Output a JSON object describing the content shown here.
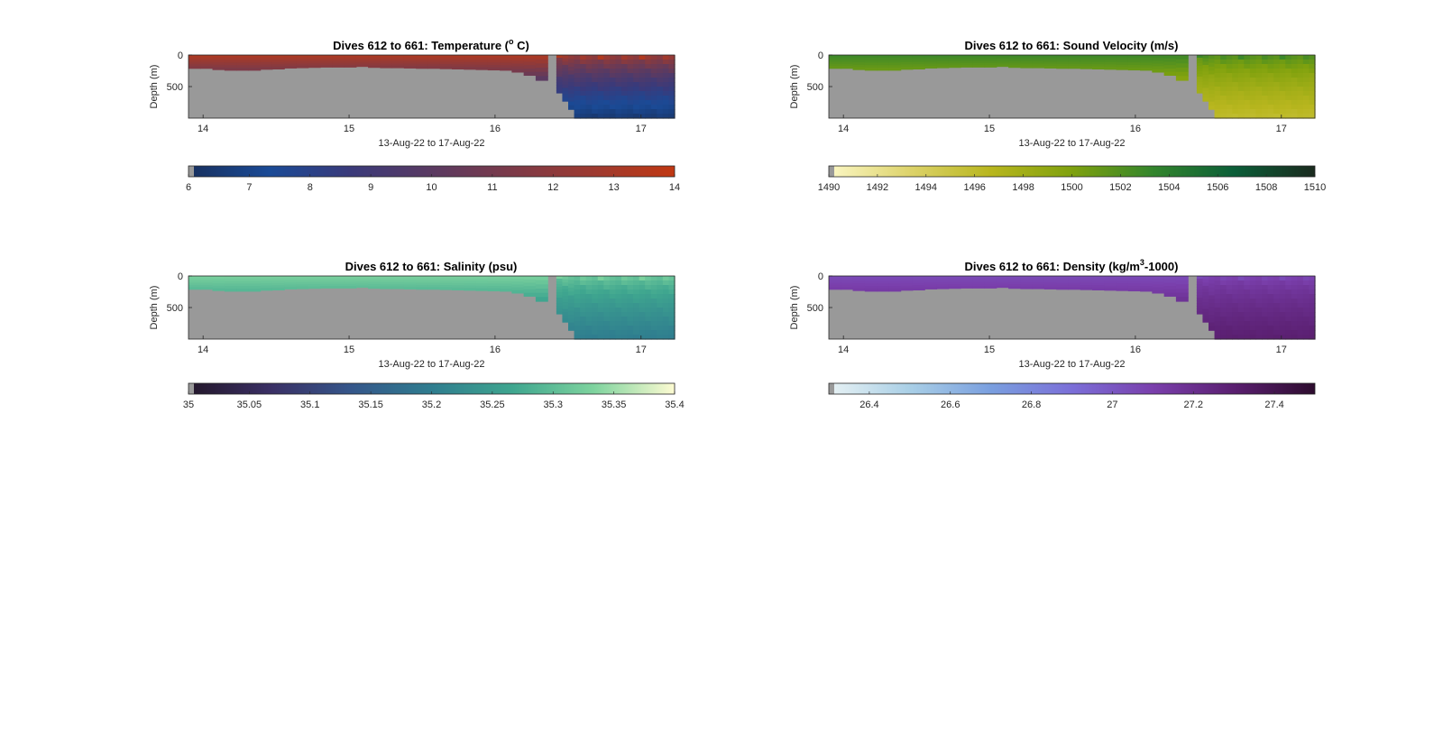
{
  "chart_data": [
    {
      "type": "heatmap",
      "title_main": "Dives 612 to 661: Temperature (",
      "title_sup": "o",
      "title_tail": " C)",
      "xlabel": "13-Aug-22 to 17-Aug-22",
      "ylabel": "Depth (m)",
      "x_ticks": [
        "14",
        "15",
        "16",
        "17"
      ],
      "x_tick_values": [
        14,
        15,
        16,
        17
      ],
      "xlim": [
        13.9,
        17.23
      ],
      "y_ticks": [
        "0",
        "500"
      ],
      "y_tick_values": [
        0,
        500
      ],
      "ylim": [
        1000,
        0
      ],
      "missing_color": "#999999",
      "colormap": [
        "#18305e",
        "#1a4a96",
        "#3a3a7a",
        "#5a3a62",
        "#7c3a48",
        "#9d3a30",
        "#c03812"
      ],
      "colorbar": {
        "ticks": [
          "6",
          "7",
          "8",
          "9",
          "10",
          "11",
          "12",
          "13",
          "14"
        ],
        "values": [
          6,
          7,
          8,
          9,
          10,
          11,
          12,
          13,
          14
        ],
        "range": [
          6,
          14
        ]
      },
      "data_floor_m": [
        210,
        210,
        230,
        240,
        240,
        240,
        225,
        220,
        205,
        200,
        195,
        190,
        190,
        190,
        180,
        195,
        200,
        200,
        205,
        210,
        210,
        215,
        220,
        225,
        230,
        235,
        240,
        270,
        320,
        400
      ],
      "deep_mixing_depth_m": 900,
      "surface_value": 13.4,
      "deep_value": 6.5,
      "gap_start": 16.36,
      "gap_end": 16.42,
      "deep_start": 16.42
    },
    {
      "type": "heatmap",
      "title_main": "Dives 612 to 661: Sound Velocity (m/s)",
      "title_sup": "",
      "title_tail": "",
      "xlabel": "13-Aug-22 to 17-Aug-22",
      "ylabel": "Depth (m)",
      "x_ticks": [
        "14",
        "15",
        "16",
        "17"
      ],
      "x_tick_values": [
        14,
        15,
        16,
        17
      ],
      "xlim": [
        13.9,
        17.23
      ],
      "y_ticks": [
        "0",
        "500"
      ],
      "y_tick_values": [
        0,
        500
      ],
      "ylim": [
        1000,
        0
      ],
      "missing_color": "#999999",
      "colormap": [
        "#fbf7c5",
        "#ddd36b",
        "#b8b61e",
        "#7fa10e",
        "#33852c",
        "#0b5e38",
        "#1a2a1e"
      ],
      "colorbar": {
        "ticks": [
          "1490",
          "1492",
          "1494",
          "1496",
          "1498",
          "1500",
          "1502",
          "1504",
          "1506",
          "1508",
          "1510"
        ],
        "values": [
          1490,
          1492,
          1494,
          1496,
          1498,
          1500,
          1502,
          1504,
          1506,
          1508,
          1510
        ],
        "range": [
          1490,
          1510
        ]
      },
      "data_floor_m": [
        210,
        210,
        230,
        240,
        240,
        240,
        225,
        220,
        205,
        200,
        195,
        190,
        190,
        190,
        180,
        195,
        200,
        200,
        205,
        210,
        210,
        215,
        220,
        225,
        230,
        235,
        240,
        270,
        320,
        400
      ],
      "deep_mixing_depth_m": 900,
      "surface_value": 1503,
      "deep_value": 1496,
      "gap_start": 16.36,
      "gap_end": 16.42,
      "deep_start": 16.42
    },
    {
      "type": "heatmap",
      "title_main": "Dives 612 to 661: Salinity (psu)",
      "title_sup": "",
      "title_tail": "",
      "xlabel": "13-Aug-22 to 17-Aug-22",
      "ylabel": "Depth (m)",
      "x_ticks": [
        "14",
        "15",
        "16",
        "17"
      ],
      "x_tick_values": [
        14,
        15,
        16,
        17
      ],
      "xlim": [
        13.9,
        17.23
      ],
      "y_ticks": [
        "0",
        "500"
      ],
      "y_tick_values": [
        0,
        500
      ],
      "ylim": [
        1000,
        0
      ],
      "missing_color": "#999999",
      "colormap": [
        "#23172a",
        "#3a2f64",
        "#35568a",
        "#2f7d8f",
        "#3fa68f",
        "#7ed39e",
        "#fdfbd2"
      ],
      "colorbar": {
        "ticks": [
          "35",
          "35.05",
          "35.1",
          "35.15",
          "35.2",
          "35.25",
          "35.3",
          "35.35",
          "35.4"
        ],
        "values": [
          35,
          35.05,
          35.1,
          35.15,
          35.2,
          35.25,
          35.3,
          35.35,
          35.4
        ],
        "range": [
          35,
          35.4
        ]
      },
      "data_floor_m": [
        210,
        210,
        230,
        240,
        240,
        240,
        225,
        220,
        205,
        200,
        195,
        190,
        190,
        190,
        180,
        195,
        200,
        200,
        205,
        210,
        210,
        215,
        220,
        225,
        230,
        235,
        240,
        270,
        320,
        400
      ],
      "deep_mixing_depth_m": 900,
      "surface_value": 35.33,
      "deep_value": 35.2,
      "gap_start": 16.36,
      "gap_end": 16.42,
      "deep_start": 16.42
    },
    {
      "type": "heatmap",
      "title_main": "Dives 612 to 661: Density (kg/m",
      "title_sup": "3",
      "title_tail": "-1000)",
      "xlabel": "13-Aug-22 to 17-Aug-22",
      "ylabel": "Depth (m)",
      "x_ticks": [
        "14",
        "15",
        "16",
        "17"
      ],
      "x_tick_values": [
        14,
        15,
        16,
        17
      ],
      "xlim": [
        13.9,
        17.23
      ],
      "y_ticks": [
        "0",
        "500"
      ],
      "y_tick_values": [
        0,
        500
      ],
      "ylim": [
        1000,
        0
      ],
      "missing_color": "#999999",
      "colormap": [
        "#e8f2f4",
        "#a9cfe6",
        "#7a9fdf",
        "#7b6fd8",
        "#7a3fac",
        "#5a1f70",
        "#2d0c2e"
      ],
      "colorbar": {
        "ticks": [
          "26.4",
          "26.6",
          "26.8",
          "27",
          "27.2",
          "27.4"
        ],
        "values": [
          26.4,
          26.6,
          26.8,
          27,
          27.2,
          27.4
        ],
        "range": [
          26.3,
          27.5
        ]
      },
      "data_floor_m": [
        210,
        210,
        230,
        240,
        240,
        240,
        225,
        220,
        205,
        200,
        195,
        190,
        190,
        190,
        180,
        195,
        200,
        200,
        205,
        210,
        210,
        215,
        220,
        225,
        230,
        235,
        240,
        270,
        320,
        400
      ],
      "deep_mixing_depth_m": 900,
      "surface_value": 27.05,
      "deep_value": 27.3,
      "gap_start": 16.36,
      "gap_end": 16.42,
      "deep_start": 16.42
    }
  ]
}
